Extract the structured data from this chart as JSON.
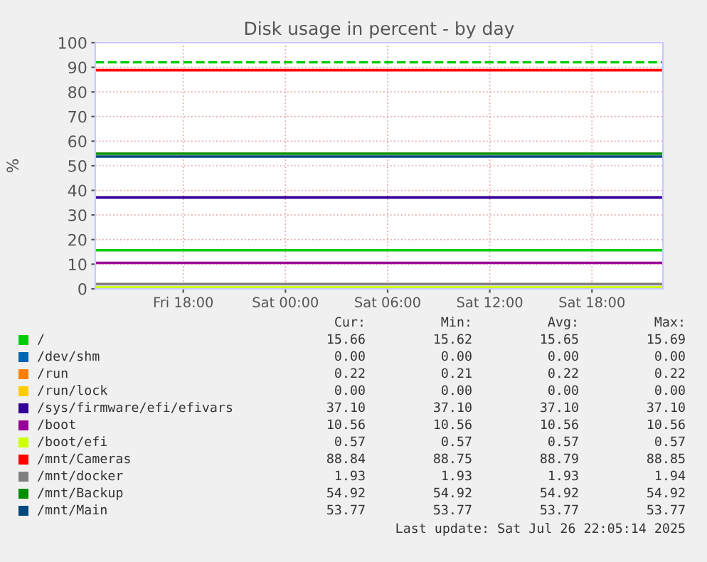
{
  "chart_data": {
    "type": "line",
    "title": "Disk usage in percent - by day",
    "ylabel": "%",
    "xlim": [
      "2025-07-25T12:50",
      "2025-07-26T22:10"
    ],
    "xticks": [
      {
        "value": "2025-07-25T18:00",
        "label": "Fri 18:00"
      },
      {
        "value": "2025-07-26T00:00",
        "label": "Sat 00:00"
      },
      {
        "value": "2025-07-26T06:00",
        "label": "Sat 06:00"
      },
      {
        "value": "2025-07-26T12:00",
        "label": "Sat 12:00"
      },
      {
        "value": "2025-07-26T18:00",
        "label": "Sat 18:00"
      }
    ],
    "ylim": [
      0,
      100
    ],
    "yticks": [
      0,
      10,
      20,
      30,
      40,
      50,
      60,
      70,
      80,
      90,
      100
    ],
    "grid": true,
    "legend": "bottom",
    "marker": "none",
    "line_style": "solid",
    "x": [
      "2025-07-25T12:50",
      "2025-07-26T22:10"
    ],
    "series": [
      {
        "name": "/",
        "color": "#00cc00",
        "values": [
          15.66,
          15.66
        ]
      },
      {
        "name": "/dev/shm",
        "color": "#0066b3",
        "values": [
          null,
          null
        ]
      },
      {
        "name": "/run",
        "color": "#ff8000",
        "values": [
          null,
          null
        ]
      },
      {
        "name": "/run/lock",
        "color": "#ffcc00",
        "values": [
          null,
          null
        ]
      },
      {
        "name": "/sys/firmware/efi/efivars",
        "color": "#330099",
        "values": [
          37.1,
          37.1
        ]
      },
      {
        "name": "/boot",
        "color": "#990099",
        "values": [
          10.56,
          10.56
        ]
      },
      {
        "name": "/boot/efi",
        "color": "#ccff00",
        "values": [
          0.57,
          0.57
        ]
      },
      {
        "name": "/mnt/Cameras",
        "color": "#ff0000",
        "values": [
          88.84,
          88.84
        ]
      },
      {
        "name": "/mnt/docker",
        "color": "#808080",
        "values": [
          1.93,
          1.93
        ]
      },
      {
        "name": "/mnt/Backup",
        "color": "#008f00",
        "values": [
          54.92,
          54.92
        ]
      },
      {
        "name": "/mnt/Main",
        "color": "#00487d",
        "values": [
          53.77,
          53.77
        ]
      }
    ],
    "ref_lines": [
      {
        "axis": "y",
        "value": 92,
        "color": "#00cc00",
        "line_style": "dashed"
      }
    ],
    "annotations": [
      "Cur:",
      "Min:",
      "Avg:",
      "Max:",
      "15.66",
      "15.62",
      "15.65",
      "15.69",
      "0.00",
      "0.00",
      "0.00",
      "0.00",
      "0.22",
      "0.21",
      "0.22",
      "0.22",
      "0.00",
      "0.00",
      "0.00",
      "0.00",
      "37.10",
      "37.10",
      "37.10",
      "37.10",
      "10.56",
      "10.56",
      "10.56",
      "10.56",
      "0.57",
      "0.57",
      "0.57",
      "0.57",
      "88.84",
      "88.75",
      "88.79",
      "88.85",
      "1.93",
      "1.93",
      "1.93",
      "1.94",
      "54.92",
      "54.92",
      "54.92",
      "54.92",
      "53.77",
      "53.77",
      "53.77",
      "53.77",
      "Last update: Sat Jul 26 22:05:14 2025"
    ]
  }
}
